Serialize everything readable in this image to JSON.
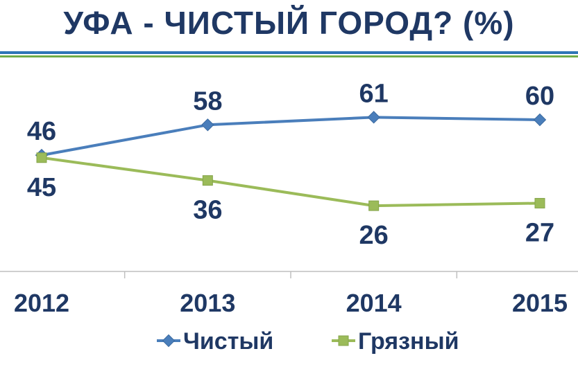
{
  "title": "УФА - ЧИСТЫЙ ГОРОД? (%)",
  "colors": {
    "title": "#1f3864",
    "rule_top": "#2e75b6",
    "rule_bottom": "#70ad47",
    "axis": "#bfbfbf"
  },
  "chart_data": {
    "type": "line",
    "title": "УФА - ЧИСТЫЙ ГОРОД? (%)",
    "categories": [
      "2012",
      "2013",
      "2014",
      "2015"
    ],
    "series": [
      {
        "name": "Чистый",
        "values": [
          46,
          58,
          61,
          60
        ],
        "color": "#4a7ebb",
        "marker": "diamond",
        "label_position": "above"
      },
      {
        "name": "Грязный",
        "values": [
          45,
          36,
          26,
          27
        ],
        "color": "#9bbb59",
        "marker": "square",
        "label_position": "below"
      }
    ],
    "ylim": [
      0,
      80
    ],
    "grid": false,
    "legend": "bottom",
    "xlabel": "",
    "ylabel": ""
  }
}
